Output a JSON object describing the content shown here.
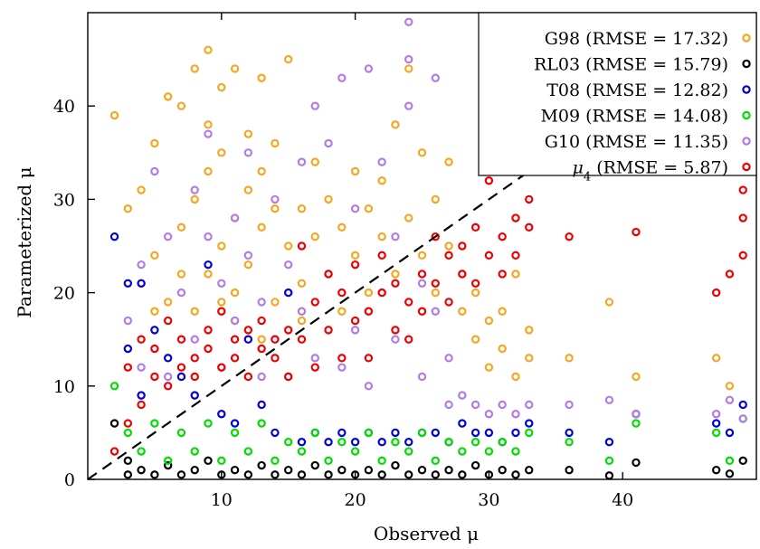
{
  "chart_data": {
    "type": "scatter",
    "xlabel": "Observed μ",
    "ylabel": "Parameterized μ",
    "xlim": [
      0,
      50
    ],
    "ylim": [
      0,
      50
    ],
    "xticks": [
      "10",
      "20",
      "30",
      "40"
    ],
    "yticks": [
      "0",
      "10",
      "20",
      "30",
      "40"
    ],
    "xtick_values": [
      10,
      20,
      30,
      40
    ],
    "ytick_values": [
      0,
      10,
      20,
      30,
      40
    ],
    "grid": false,
    "legend_position": "top-right",
    "reference_line": "y = x (dashed)",
    "marker": "open circle",
    "series": [
      {
        "name": "G98 (RMSE = 17.32)",
        "label_base": "G98",
        "rmse": 17.32,
        "color": "#f5a623",
        "points": [
          [
            3,
            29
          ],
          [
            4,
            31
          ],
          [
            5,
            24
          ],
          [
            5,
            36
          ],
          [
            6,
            41
          ],
          [
            7,
            27
          ],
          [
            7,
            40
          ],
          [
            8,
            18
          ],
          [
            8,
            30
          ],
          [
            8,
            44
          ],
          [
            9,
            22
          ],
          [
            9,
            33
          ],
          [
            9,
            38
          ],
          [
            9,
            46
          ],
          [
            10,
            25
          ],
          [
            10,
            42
          ],
          [
            10,
            35
          ],
          [
            11,
            28
          ],
          [
            11,
            44
          ],
          [
            11,
            20
          ],
          [
            12,
            31
          ],
          [
            12,
            37
          ],
          [
            12,
            23
          ],
          [
            13,
            27
          ],
          [
            13,
            33
          ],
          [
            13,
            43
          ],
          [
            14,
            19
          ],
          [
            14,
            29
          ],
          [
            14,
            36
          ],
          [
            15,
            25
          ],
          [
            15,
            45
          ],
          [
            16,
            21
          ],
          [
            16,
            29
          ],
          [
            17,
            34
          ],
          [
            17,
            26
          ],
          [
            18,
            22
          ],
          [
            18,
            30
          ],
          [
            19,
            18
          ],
          [
            19,
            27
          ],
          [
            20,
            24
          ],
          [
            20,
            33
          ],
          [
            21,
            20
          ],
          [
            21,
            29
          ],
          [
            22,
            26
          ],
          [
            22,
            32
          ],
          [
            23,
            22
          ],
          [
            23,
            38
          ],
          [
            24,
            28
          ],
          [
            24,
            44
          ],
          [
            25,
            24
          ],
          [
            25,
            35
          ],
          [
            26,
            20
          ],
          [
            26,
            30
          ],
          [
            27,
            25
          ],
          [
            27,
            34
          ],
          [
            28,
            18
          ],
          [
            28,
            22
          ],
          [
            29,
            15
          ],
          [
            29,
            20
          ],
          [
            30,
            12
          ],
          [
            30,
            17
          ],
          [
            31,
            18
          ],
          [
            31,
            14
          ],
          [
            32,
            22
          ],
          [
            32,
            11
          ],
          [
            33,
            16
          ],
          [
            33,
            13
          ],
          [
            36,
            13
          ],
          [
            39,
            19
          ],
          [
            41,
            11
          ],
          [
            47,
            13
          ],
          [
            48,
            10
          ],
          [
            10,
            19
          ],
          [
            11,
            17
          ],
          [
            13,
            15
          ],
          [
            16,
            17
          ],
          [
            6,
            19
          ],
          [
            7,
            22
          ],
          [
            5,
            18
          ],
          [
            4,
            21
          ],
          [
            2,
            39
          ]
        ]
      },
      {
        "name": "RL03 (RMSE = 15.79)",
        "label_base": "RL03",
        "rmse": 15.79,
        "color": "#000000",
        "points": [
          [
            2,
            6
          ],
          [
            3,
            2
          ],
          [
            3,
            0.5
          ],
          [
            4,
            1
          ],
          [
            5,
            0.5
          ],
          [
            6,
            1.5
          ],
          [
            7,
            0.5
          ],
          [
            8,
            1
          ],
          [
            9,
            2
          ],
          [
            10,
            0.5
          ],
          [
            11,
            1
          ],
          [
            12,
            0.5
          ],
          [
            13,
            1.5
          ],
          [
            14,
            0.5
          ],
          [
            15,
            1
          ],
          [
            16,
            0.5
          ],
          [
            17,
            1.5
          ],
          [
            18,
            0.5
          ],
          [
            19,
            1
          ],
          [
            20,
            0.5
          ],
          [
            21,
            1
          ],
          [
            22,
            0.5
          ],
          [
            23,
            1.5
          ],
          [
            24,
            0.5
          ],
          [
            25,
            1
          ],
          [
            26,
            0.5
          ],
          [
            27,
            1
          ],
          [
            28,
            0.5
          ],
          [
            29,
            1.5
          ],
          [
            30,
            0.5
          ],
          [
            31,
            1
          ],
          [
            32,
            0.5
          ],
          [
            33,
            1
          ],
          [
            36,
            1
          ],
          [
            39,
            0.4
          ],
          [
            41,
            1.8
          ],
          [
            47,
            1
          ],
          [
            48,
            0.6
          ],
          [
            49,
            2
          ]
        ]
      },
      {
        "name": "T08 (RMSE = 12.82)",
        "label_base": "T08",
        "rmse": 12.82,
        "color": "#0000dd",
        "points": [
          [
            2,
            26
          ],
          [
            3,
            21
          ],
          [
            3,
            14
          ],
          [
            4,
            21
          ],
          [
            4,
            9
          ],
          [
            5,
            16
          ],
          [
            6,
            13
          ],
          [
            7,
            11
          ],
          [
            8,
            9
          ],
          [
            9,
            23
          ],
          [
            10,
            7
          ],
          [
            11,
            6
          ],
          [
            12,
            15
          ],
          [
            13,
            8
          ],
          [
            14,
            5
          ],
          [
            15,
            20
          ],
          [
            16,
            4
          ],
          [
            17,
            5
          ],
          [
            18,
            4
          ],
          [
            19,
            5
          ],
          [
            20,
            4
          ],
          [
            21,
            5
          ],
          [
            22,
            4
          ],
          [
            23,
            5
          ],
          [
            24,
            4
          ],
          [
            25,
            5
          ],
          [
            26,
            5
          ],
          [
            27,
            4
          ],
          [
            28,
            6
          ],
          [
            29,
            5
          ],
          [
            30,
            5
          ],
          [
            31,
            4
          ],
          [
            32,
            5
          ],
          [
            33,
            6
          ],
          [
            36,
            5
          ],
          [
            39,
            4
          ],
          [
            41,
            7
          ],
          [
            47,
            6
          ],
          [
            48,
            5
          ],
          [
            49,
            8
          ]
        ]
      },
      {
        "name": "M09 (RMSE = 14.08)",
        "label_base": "M09",
        "rmse": 14.08,
        "color": "#00dd00",
        "points": [
          [
            2,
            10
          ],
          [
            3,
            5
          ],
          [
            4,
            3
          ],
          [
            5,
            6
          ],
          [
            6,
            2
          ],
          [
            7,
            5
          ],
          [
            8,
            3
          ],
          [
            9,
            6
          ],
          [
            10,
            2
          ],
          [
            11,
            5
          ],
          [
            12,
            3
          ],
          [
            13,
            6
          ],
          [
            14,
            2
          ],
          [
            15,
            4
          ],
          [
            16,
            3
          ],
          [
            17,
            5
          ],
          [
            18,
            2
          ],
          [
            19,
            4
          ],
          [
            20,
            3
          ],
          [
            21,
            5
          ],
          [
            22,
            2
          ],
          [
            23,
            4
          ],
          [
            24,
            3
          ],
          [
            25,
            5
          ],
          [
            26,
            2
          ],
          [
            27,
            4
          ],
          [
            28,
            3
          ],
          [
            29,
            4
          ],
          [
            30,
            3
          ],
          [
            31,
            4
          ],
          [
            32,
            3
          ],
          [
            33,
            5
          ],
          [
            36,
            4
          ],
          [
            39,
            2
          ],
          [
            41,
            6
          ],
          [
            47,
            5
          ],
          [
            48,
            2
          ],
          [
            49,
            6.5
          ]
        ]
      },
      {
        "name": "G10 (RMSE = 11.35)",
        "label_base": "G10",
        "rmse": 11.35,
        "color": "#b07de6",
        "points": [
          [
            3,
            17
          ],
          [
            4,
            23
          ],
          [
            4,
            12
          ],
          [
            5,
            33
          ],
          [
            6,
            26
          ],
          [
            6,
            11
          ],
          [
            7,
            20
          ],
          [
            8,
            15
          ],
          [
            8,
            31
          ],
          [
            9,
            26
          ],
          [
            9,
            37
          ],
          [
            10,
            21
          ],
          [
            10,
            12
          ],
          [
            11,
            17
          ],
          [
            11,
            28
          ],
          [
            12,
            24
          ],
          [
            12,
            35
          ],
          [
            13,
            11
          ],
          [
            13,
            19
          ],
          [
            14,
            30
          ],
          [
            14,
            15
          ],
          [
            15,
            23
          ],
          [
            15,
            11
          ],
          [
            16,
            34
          ],
          [
            16,
            18
          ],
          [
            17,
            40
          ],
          [
            17,
            13
          ],
          [
            18,
            36
          ],
          [
            18,
            22
          ],
          [
            19,
            43
          ],
          [
            19,
            12
          ],
          [
            20,
            29
          ],
          [
            20,
            16
          ],
          [
            21,
            44
          ],
          [
            21,
            10
          ],
          [
            22,
            20
          ],
          [
            22,
            34
          ],
          [
            23,
            15
          ],
          [
            23,
            26
          ],
          [
            24,
            45
          ],
          [
            24,
            40
          ],
          [
            24,
            49
          ],
          [
            25,
            11
          ],
          [
            25,
            21
          ],
          [
            26,
            18
          ],
          [
            26,
            43
          ],
          [
            27,
            13
          ],
          [
            27,
            8
          ],
          [
            28,
            9
          ],
          [
            29,
            8
          ],
          [
            30,
            7
          ],
          [
            31,
            8
          ],
          [
            32,
            7
          ],
          [
            33,
            8
          ],
          [
            36,
            8
          ],
          [
            39,
            8.5
          ],
          [
            41,
            7
          ],
          [
            47,
            7
          ],
          [
            48,
            8.5
          ],
          [
            49,
            6.5
          ]
        ]
      },
      {
        "name": "μ4 (RMSE = 5.87)",
        "label_base": "μ",
        "label_sub": "4",
        "label_rest": " (RMSE = 5.87)",
        "rmse": 5.87,
        "color": "#ee0000",
        "points": [
          [
            2,
            3
          ],
          [
            3,
            6
          ],
          [
            3,
            12
          ],
          [
            4,
            8
          ],
          [
            4,
            15
          ],
          [
            5,
            11
          ],
          [
            5,
            14
          ],
          [
            6,
            10
          ],
          [
            6,
            17
          ],
          [
            7,
            12
          ],
          [
            7,
            15
          ],
          [
            8,
            13
          ],
          [
            8,
            11
          ],
          [
            9,
            14
          ],
          [
            9,
            16
          ],
          [
            10,
            12
          ],
          [
            10,
            18
          ],
          [
            11,
            13
          ],
          [
            11,
            15
          ],
          [
            12,
            16
          ],
          [
            12,
            11
          ],
          [
            13,
            14
          ],
          [
            13,
            17
          ],
          [
            14,
            13
          ],
          [
            14,
            15
          ],
          [
            15,
            11
          ],
          [
            15,
            16
          ],
          [
            16,
            15
          ],
          [
            16,
            25
          ],
          [
            17,
            12
          ],
          [
            17,
            19
          ],
          [
            18,
            16
          ],
          [
            18,
            22
          ],
          [
            19,
            13
          ],
          [
            19,
            20
          ],
          [
            20,
            17
          ],
          [
            20,
            23
          ],
          [
            21,
            18
          ],
          [
            21,
            13
          ],
          [
            22,
            20
          ],
          [
            22,
            24
          ],
          [
            23,
            16
          ],
          [
            23,
            21
          ],
          [
            24,
            19
          ],
          [
            24,
            15
          ],
          [
            25,
            22
          ],
          [
            25,
            18
          ],
          [
            26,
            21
          ],
          [
            26,
            26
          ],
          [
            27,
            24
          ],
          [
            27,
            19
          ],
          [
            28,
            22
          ],
          [
            28,
            25
          ],
          [
            29,
            21
          ],
          [
            29,
            27
          ],
          [
            30,
            24
          ],
          [
            30,
            32
          ],
          [
            31,
            26
          ],
          [
            31,
            22
          ],
          [
            32,
            28
          ],
          [
            32,
            24
          ],
          [
            33,
            30
          ],
          [
            33,
            27
          ],
          [
            36,
            26
          ],
          [
            41,
            26.5
          ],
          [
            47,
            20
          ],
          [
            48,
            22
          ],
          [
            49,
            24
          ],
          [
            49,
            31
          ],
          [
            49,
            28
          ],
          [
            49,
            35
          ]
        ]
      }
    ]
  }
}
